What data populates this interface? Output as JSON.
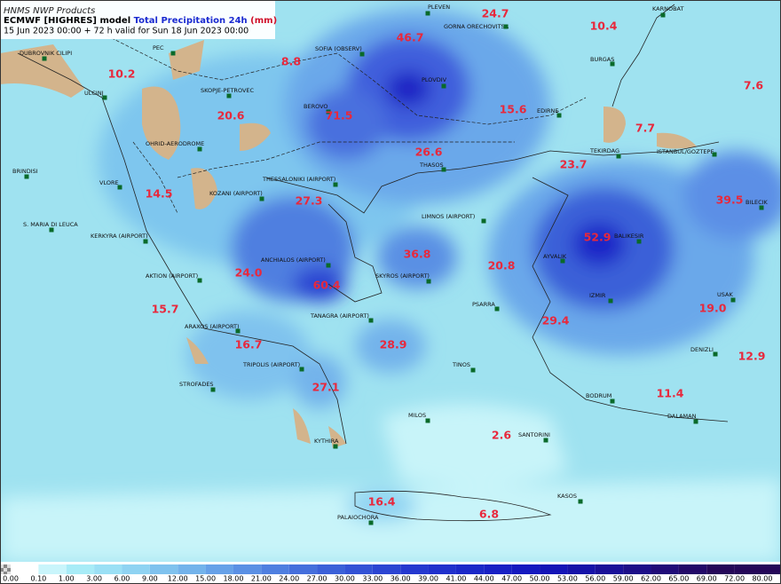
{
  "header": {
    "products": "HNMS NWP Products",
    "model": "ECMWF [HIGHRES] model",
    "title": "Total Precipitation 24h",
    "unit": "(mm)",
    "valid": "15 Jun 2023 00:00 + 72 h valid for Sun 18 Jun 2023 00:00"
  },
  "stations": [
    {
      "name": "PLEVEN"
    },
    {
      "name": "KARNOBAT"
    },
    {
      "name": "GORNA ORECHOVITSA"
    },
    {
      "name": "PEC"
    },
    {
      "name": "DUBROVNIK CILIPI"
    },
    {
      "name": "SOFIA (OBSERV)"
    },
    {
      "name": "BURGAS"
    },
    {
      "name": "ULCINJ"
    },
    {
      "name": "SKOPJE-PETROVEC"
    },
    {
      "name": "PLOVDIV"
    },
    {
      "name": "BEROVO"
    },
    {
      "name": "EDIRNE"
    },
    {
      "name": "OHRID-AERODROME"
    },
    {
      "name": "TEKIRDAG"
    },
    {
      "name": "ISTANBUL/GOZTEPE"
    },
    {
      "name": "BRINDISI"
    },
    {
      "name": "THASOS"
    },
    {
      "name": "VLORE"
    },
    {
      "name": "KOZANI (AIRPORT)"
    },
    {
      "name": "THESSALONIKI (AIRPORT)"
    },
    {
      "name": "LIMNOS (AIRPORT)"
    },
    {
      "name": "BILECIK"
    },
    {
      "name": "S. MARIA DI LEUCA"
    },
    {
      "name": "KERKYRA (AIRPORT)"
    },
    {
      "name": "BALIKESIR"
    },
    {
      "name": "AYVALIK"
    },
    {
      "name": "ANCHIALOS (AIRPORT)"
    },
    {
      "name": "SKYROS (AIRPORT)"
    },
    {
      "name": "AKTION (AIRPORT)"
    },
    {
      "name": "USAK"
    },
    {
      "name": "PSARRA"
    },
    {
      "name": "TANAGRA (AIRPORT)"
    },
    {
      "name": "ARAXOS (AIRPORT)"
    },
    {
      "name": "DENIZLI"
    },
    {
      "name": "TRIPOLIS (AIRPORT)"
    },
    {
      "name": "TINOS"
    },
    {
      "name": "STROFADES"
    },
    {
      "name": "BODRUM"
    },
    {
      "name": "DALAMAN"
    },
    {
      "name": "MILOS"
    },
    {
      "name": "SANTORINI"
    },
    {
      "name": "KYTHIRA"
    },
    {
      "name": "KASOS"
    },
    {
      "name": "PALAIOCHORA"
    },
    {
      "name": "IZMIR"
    }
  ],
  "precip": [
    24.7,
    10.4,
    46.7,
    8.8,
    10.2,
    7.6,
    71.5,
    15.6,
    20.6,
    7.7,
    26.6,
    23.7,
    14.5,
    27.3,
    39.5,
    52.9,
    36.8,
    20.8,
    24.0,
    60.4,
    15.7,
    19.0,
    29.4,
    16.7,
    28.9,
    12.9,
    27.1,
    11.4,
    2.6,
    16.4,
    6.8
  ],
  "colorbar": {
    "labels": [
      "0.00",
      "0.10",
      "1.00",
      "3.00",
      "6.00",
      "9.00",
      "12.00",
      "15.00",
      "18.00",
      "21.00",
      "24.00",
      "27.00",
      "30.00",
      "33.00",
      "36.00",
      "39.00",
      "41.00",
      "44.00",
      "47.00",
      "50.00",
      "53.00",
      "56.00",
      "59.00",
      "62.00",
      "65.00",
      "69.00",
      "72.00",
      "80.00"
    ]
  }
}
